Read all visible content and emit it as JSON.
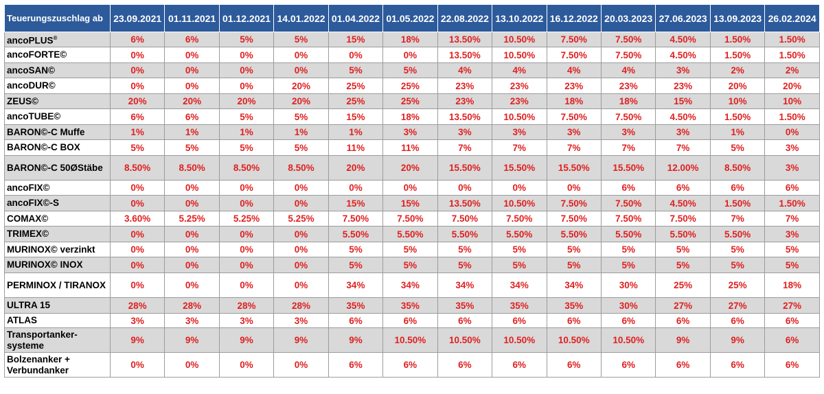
{
  "table": {
    "corner_label": "Teuerungszuschlag ab",
    "dates": [
      "23.09.2021",
      "01.11.2021",
      "01.12.2021",
      "14.01.2022",
      "01.04.2022",
      "01.05.2022",
      "22.08.2022",
      "13.10.2022",
      "16.12.2022",
      "20.03.2023",
      "27.06.2023",
      "13.09.2023",
      "26.02.2024"
    ],
    "rows": [
      {
        "name": "ancoPLUS",
        "sup": "®",
        "values": [
          "6%",
          "6%",
          "5%",
          "5%",
          "15%",
          "18%",
          "13.50%",
          "10.50%",
          "7.50%",
          "7.50%",
          "4.50%",
          "1.50%",
          "1.50%"
        ]
      },
      {
        "name": "ancoFORTE©",
        "values": [
          "0%",
          "0%",
          "0%",
          "0%",
          "0%",
          "0%",
          "13.50%",
          "10.50%",
          "7.50%",
          "7.50%",
          "4.50%",
          "1.50%",
          "1.50%"
        ]
      },
      {
        "name": "ancoSAN©",
        "values": [
          "0%",
          "0%",
          "0%",
          "0%",
          "5%",
          "5%",
          "4%",
          "4%",
          "4%",
          "4%",
          "3%",
          "2%",
          "2%"
        ]
      },
      {
        "name": "ancoDUR©",
        "values": [
          "0%",
          "0%",
          "0%",
          "20%",
          "25%",
          "25%",
          "23%",
          "23%",
          "23%",
          "23%",
          "23%",
          "20%",
          "20%"
        ]
      },
      {
        "name": "ZEUS©",
        "values": [
          "20%",
          "20%",
          "20%",
          "20%",
          "25%",
          "25%",
          "23%",
          "23%",
          "18%",
          "18%",
          "15%",
          "10%",
          "10%"
        ]
      },
      {
        "name": "ancoTUBE©",
        "values": [
          "6%",
          "6%",
          "5%",
          "5%",
          "15%",
          "18%",
          "13.50%",
          "10.50%",
          "7.50%",
          "7.50%",
          "4.50%",
          "1.50%",
          "1.50%"
        ]
      },
      {
        "name": "BARON©-C Muffe",
        "values": [
          "1%",
          "1%",
          "1%",
          "1%",
          "1%",
          "3%",
          "3%",
          "3%",
          "3%",
          "3%",
          "3%",
          "1%",
          "0%"
        ]
      },
      {
        "name": "BARON©-C BOX",
        "values": [
          "5%",
          "5%",
          "5%",
          "5%",
          "11%",
          "11%",
          "7%",
          "7%",
          "7%",
          "7%",
          "7%",
          "5%",
          "3%"
        ]
      },
      {
        "name": "BARON©-C 50ØStäbe",
        "values": [
          "8.50%",
          "8.50%",
          "8.50%",
          "8.50%",
          "20%",
          "20%",
          "15.50%",
          "15.50%",
          "15.50%",
          "15.50%",
          "12.00%",
          "8.50%",
          "3%"
        ]
      },
      {
        "name": "ancoFIX©",
        "values": [
          "0%",
          "0%",
          "0%",
          "0%",
          "0%",
          "0%",
          "0%",
          "0%",
          "0%",
          "6%",
          "6%",
          "6%",
          "6%"
        ]
      },
      {
        "name": "ancoFIX©-S",
        "values": [
          "0%",
          "0%",
          "0%",
          "0%",
          "15%",
          "15%",
          "13.50%",
          "10.50%",
          "7.50%",
          "7.50%",
          "4.50%",
          "1.50%",
          "1.50%"
        ]
      },
      {
        "name": "COMAX©",
        "values": [
          "3.60%",
          "5.25%",
          "5.25%",
          "5.25%",
          "7.50%",
          "7.50%",
          "7.50%",
          "7.50%",
          "7.50%",
          "7.50%",
          "7.50%",
          "7%",
          "7%"
        ]
      },
      {
        "name": "TRIMEX©",
        "values": [
          "0%",
          "0%",
          "0%",
          "0%",
          "5.50%",
          "5.50%",
          "5.50%",
          "5.50%",
          "5.50%",
          "5.50%",
          "5.50%",
          "5.50%",
          "3%"
        ]
      },
      {
        "name": "MURINOX© verzinkt",
        "values": [
          "0%",
          "0%",
          "0%",
          "0%",
          "5%",
          "5%",
          "5%",
          "5%",
          "5%",
          "5%",
          "5%",
          "5%",
          "5%"
        ]
      },
      {
        "name": "MURINOX© INOX",
        "values": [
          "0%",
          "0%",
          "0%",
          "0%",
          "5%",
          "5%",
          "5%",
          "5%",
          "5%",
          "5%",
          "5%",
          "5%",
          "5%"
        ]
      },
      {
        "name": "PERMINOX / TIRANOX",
        "values": [
          "0%",
          "0%",
          "0%",
          "0%",
          "34%",
          "34%",
          "34%",
          "34%",
          "34%",
          "30%",
          "25%",
          "25%",
          "18%"
        ]
      },
      {
        "name": "ULTRA 15",
        "values": [
          "28%",
          "28%",
          "28%",
          "28%",
          "35%",
          "35%",
          "35%",
          "35%",
          "35%",
          "30%",
          "27%",
          "27%",
          "27%"
        ]
      },
      {
        "name": "ATLAS",
        "values": [
          "3%",
          "3%",
          "3%",
          "3%",
          "6%",
          "6%",
          "6%",
          "6%",
          "6%",
          "6%",
          "6%",
          "6%",
          "6%"
        ]
      },
      {
        "name": "Transportanker-systeme",
        "values": [
          "9%",
          "9%",
          "9%",
          "9%",
          "9%",
          "10.50%",
          "10.50%",
          "10.50%",
          "10.50%",
          "10.50%",
          "9%",
          "9%",
          "6%"
        ]
      },
      {
        "name": "Bolzenanker + Verbundanker",
        "values": [
          "0%",
          "0%",
          "0%",
          "0%",
          "6%",
          "6%",
          "6%",
          "6%",
          "6%",
          "6%",
          "6%",
          "6%",
          "6%"
        ]
      }
    ]
  }
}
